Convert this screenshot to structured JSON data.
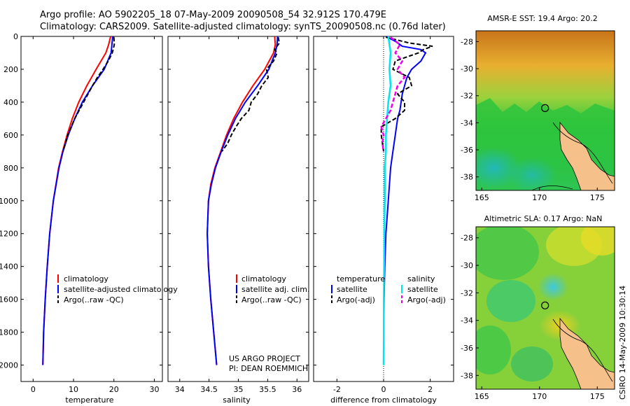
{
  "figure": {
    "title_line1": "Argo profile: AO 5902205_18 07-May-2009 20090508_54 32.912S 170.479E",
    "title_line2": "Climatology: CARS2009. Satellite-adjusted climatology: synTS_20090508.nc (0.76d later)",
    "credit_line1": "US ARGO PROJECT",
    "credit_line2": "PI: DEAN ROEMMICH",
    "footer_stamp": "CSIRO 14-May-2009 10:30:14"
  },
  "colors": {
    "climatology": "#ff0000",
    "satellite": "#0000ff",
    "argo": "#000000",
    "temp_diff_satellite": "#0000ff",
    "sal_diff_satellite": "#00e5ee",
    "sal_diff_argo": "#ee00ee"
  },
  "chart_data": [
    {
      "type": "line",
      "name": "temperature-profile",
      "xlabel": "temperature",
      "ylabel": "",
      "xlim": [
        -3,
        32
      ],
      "ylim": [
        2100,
        0
      ],
      "xticks": [
        "0",
        "10",
        "20",
        "30"
      ],
      "xtick_values": [
        0,
        10,
        20,
        30
      ],
      "yticks": [
        "0",
        "200",
        "400",
        "600",
        "800",
        "1000",
        "1200",
        "1400",
        "1600",
        "1800",
        "2000"
      ],
      "ytick_values": [
        0,
        200,
        400,
        600,
        800,
        1000,
        1200,
        1400,
        1600,
        1800,
        2000
      ],
      "legend": [
        "climatology",
        "satellite-adjusted climatology",
        "Argo(..raw -QC)"
      ],
      "series": [
        {
          "name": "climatology",
          "depth": [
            0,
            50,
            100,
            200,
            300,
            400,
            500,
            600,
            700,
            800,
            1000,
            1200,
            1400,
            1600,
            1800,
            2000
          ],
          "values": [
            19.2,
            18.7,
            18.0,
            15.6,
            13.3,
            11.3,
            9.7,
            8.4,
            7.3,
            6.3,
            5.0,
            4.1,
            3.5,
            3.0,
            2.6,
            2.4
          ]
        },
        {
          "name": "satellite-adjusted climatology",
          "depth": [
            0,
            50,
            100,
            200,
            300,
            400,
            500,
            600,
            700,
            800,
            1000,
            1200,
            1400,
            1600,
            1800,
            2000
          ],
          "values": [
            19.7,
            19.5,
            19.3,
            17.6,
            14.7,
            12.2,
            10.3,
            8.7,
            7.4,
            6.4,
            5.0,
            4.1,
            3.5,
            3.0,
            2.6,
            2.4
          ]
        },
        {
          "name": "Argo(..raw -QC)",
          "depth": [
            5,
            50,
            80,
            100,
            150,
            200,
            250,
            300,
            400,
            500,
            600,
            700
          ],
          "values": [
            20.0,
            20.1,
            19.8,
            19.6,
            18.6,
            17.3,
            15.9,
            14.7,
            12.5,
            10.3,
            8.6,
            7.4
          ]
        }
      ]
    },
    {
      "type": "line",
      "name": "salinity-profile",
      "xlabel": "salinity",
      "ylabel": "",
      "xlim": [
        33.8,
        36.2
      ],
      "ylim": [
        2100,
        0
      ],
      "xticks": [
        "34",
        "34.5",
        "35",
        "35.5",
        "36"
      ],
      "xtick_values": [
        34,
        34.5,
        35,
        35.5,
        36
      ],
      "legend": [
        "climatology",
        "satellite adj. clim.",
        "Argo(..raw -QC)"
      ],
      "series": [
        {
          "name": "climatology",
          "depth": [
            0,
            50,
            100,
            200,
            300,
            400,
            500,
            600,
            700,
            800,
            900,
            1000,
            1200,
            1400,
            1600,
            1800,
            2000
          ],
          "values": [
            35.62,
            35.63,
            35.6,
            35.45,
            35.25,
            35.07,
            34.92,
            34.8,
            34.7,
            34.6,
            34.53,
            34.49,
            34.47,
            34.49,
            34.53,
            34.58,
            34.63
          ]
        },
        {
          "name": "satellite adj. clim.",
          "depth": [
            0,
            50,
            100,
            200,
            300,
            400,
            500,
            600,
            700,
            800,
            900,
            1000,
            1200,
            1400,
            1600,
            1800,
            2000
          ],
          "values": [
            35.67,
            35.66,
            35.63,
            35.52,
            35.33,
            35.12,
            34.95,
            34.82,
            34.71,
            34.61,
            34.54,
            34.49,
            34.47,
            34.49,
            34.53,
            34.58,
            34.63
          ]
        },
        {
          "name": "Argo(..raw -QC)",
          "depth": [
            5,
            40,
            80,
            100,
            150,
            200,
            250,
            300,
            350,
            400,
            450,
            500,
            550,
            600,
            650,
            700
          ],
          "values": [
            35.68,
            35.7,
            35.62,
            35.66,
            35.6,
            35.48,
            35.51,
            35.4,
            35.33,
            35.22,
            35.18,
            35.05,
            34.96,
            34.88,
            34.82,
            34.72
          ]
        }
      ]
    },
    {
      "type": "line",
      "name": "difference-from-climatology",
      "xlabel": "difference from climatology",
      "ylabel": "",
      "xlim": [
        -3,
        3
      ],
      "ylim": [
        2100,
        0
      ],
      "xticks": [
        "-2",
        "0",
        "2"
      ],
      "xtick_values": [
        -2,
        0,
        2
      ],
      "legend_temperature_title": "temperature",
      "legend_salinity_title": "salinity",
      "legend": [
        "satellite",
        "Argo(-adj)",
        "satellite",
        "Argo(-adj)"
      ],
      "series": [
        {
          "name": "temperature satellite",
          "depth": [
            0,
            30,
            60,
            80,
            100,
            150,
            200,
            250,
            300,
            350,
            400,
            450,
            500,
            600,
            700,
            800,
            1000,
            1200,
            1400,
            1600,
            1800,
            2000
          ],
          "values": [
            0.1,
            0.5,
            0.8,
            1.6,
            1.8,
            1.6,
            1.2,
            1.0,
            0.9,
            0.8,
            0.75,
            0.7,
            0.6,
            0.5,
            0.4,
            0.3,
            0.2,
            0.1,
            0.05,
            0.02,
            0.01,
            0.0
          ]
        },
        {
          "name": "temperature Argo(-adj)",
          "depth": [
            5,
            40,
            60,
            80,
            100,
            150,
            200,
            250,
            300,
            350,
            400,
            450,
            500,
            550,
            600,
            650,
            700
          ],
          "values": [
            0.1,
            1.1,
            2.1,
            1.7,
            1.5,
            0.5,
            0.4,
            1.1,
            1.2,
            0.6,
            0.9,
            0.9,
            0.5,
            -0.1,
            -0.1,
            -0.05,
            0.0
          ]
        },
        {
          "name": "salinity satellite",
          "depth": [
            0,
            100,
            200,
            300,
            400,
            500,
            600,
            700,
            800,
            1000,
            1200,
            1400,
            1600,
            1800,
            2000
          ],
          "values": [
            0.2,
            0.3,
            0.25,
            0.3,
            0.2,
            0.15,
            0.1,
            0.1,
            0.05,
            0.05,
            0.03,
            0.02,
            0.01,
            0.01,
            0.0
          ]
        },
        {
          "name": "salinity Argo(-adj)",
          "depth": [
            5,
            50,
            100,
            150,
            200,
            250,
            300,
            350,
            400,
            450,
            500,
            550,
            600,
            650,
            700
          ],
          "values": [
            0.3,
            0.7,
            0.5,
            0.8,
            0.6,
            0.9,
            0.6,
            0.5,
            0.4,
            0.3,
            0.1,
            -0.1,
            0.0,
            -0.05,
            0.0
          ]
        }
      ]
    },
    {
      "type": "heatmap",
      "name": "sst-map",
      "title": "AMSR-E SST: 19.4 Argo: 20.2",
      "xticks": [
        "165",
        "170",
        "175"
      ],
      "xtick_values": [
        165,
        170,
        175
      ],
      "yticks": [
        "-28",
        "-30",
        "-32",
        "-34",
        "-36",
        "-38"
      ],
      "ytick_values": [
        -28,
        -30,
        -32,
        -34,
        -36,
        -38
      ],
      "xlim": [
        164.5,
        176.5
      ],
      "ylim": [
        -39,
        -27.2
      ],
      "marker": {
        "lon": 170.479,
        "lat": -32.912
      }
    },
    {
      "type": "heatmap",
      "name": "sla-map",
      "title": "Altimetric SLA: 0.17 Argo: NaN",
      "xticks": [
        "165",
        "170",
        "175"
      ],
      "xtick_values": [
        165,
        170,
        175
      ],
      "yticks": [
        "-28",
        "-30",
        "-32",
        "-34",
        "-36",
        "-38"
      ],
      "ytick_values": [
        -28,
        -30,
        -32,
        -34,
        -36,
        -38
      ],
      "xlim": [
        164.5,
        176.5
      ],
      "ylim": [
        -39,
        -27.2
      ],
      "marker": {
        "lon": 170.479,
        "lat": -32.912
      }
    }
  ]
}
